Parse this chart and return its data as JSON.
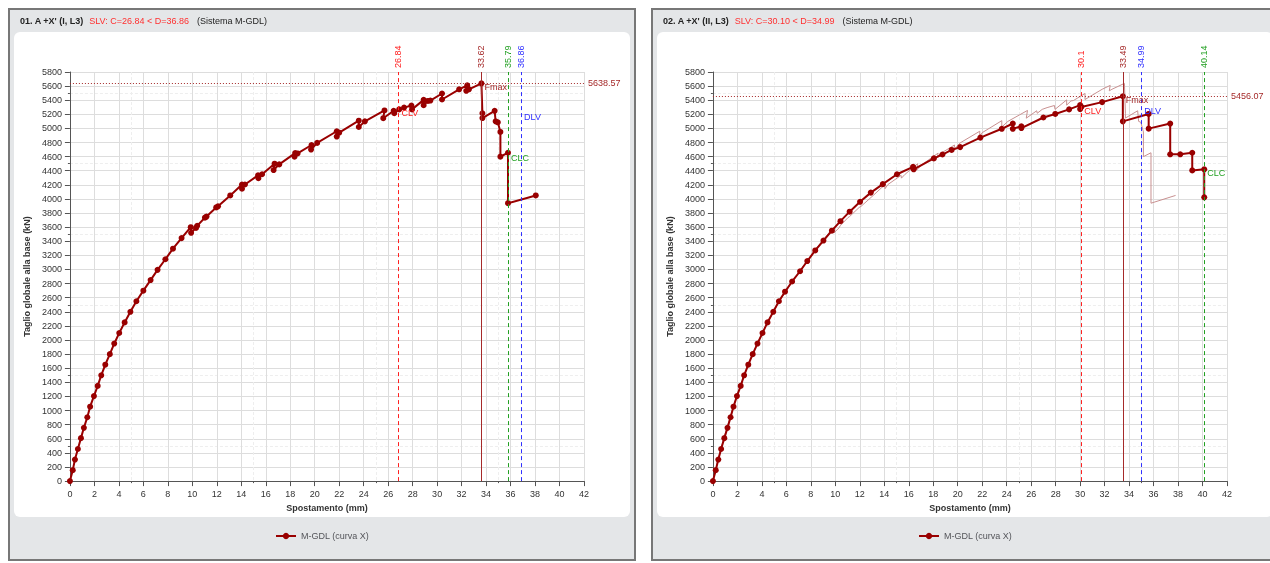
{
  "chart_data": [
    {
      "type": "line",
      "title": "01. A +X' (I, L3)",
      "subtitle": "SLV: C=26.84 < D=36.86",
      "xlabel": "Spostamento (mm)",
      "ylabel": "Taglio globale alla base (kN)",
      "xlim": [
        0,
        42
      ],
      "xticks": [
        0,
        2,
        4,
        6,
        8,
        10,
        12,
        14,
        16,
        18,
        20,
        22,
        24,
        26,
        28,
        30,
        32,
        34,
        36,
        38,
        40,
        42
      ],
      "ylim": [
        0,
        5800
      ],
      "yticks": [
        0,
        200,
        400,
        600,
        800,
        1000,
        1200,
        1400,
        1600,
        1800,
        2000,
        2200,
        2400,
        2600,
        2800,
        3000,
        3200,
        3400,
        3600,
        3800,
        4000,
        4200,
        4400,
        4600,
        4800,
        5000,
        5200,
        5400,
        5600,
        5800
      ],
      "grid": true,
      "legend": "bottom",
      "marker": "circle",
      "line_style": "solid",
      "series": [
        {
          "name": "M-GDL (curva X)",
          "color": "#990000",
          "x": [
            0,
            0.23,
            0.41,
            0.65,
            0.9,
            1.14,
            1.42,
            1.65,
            1.96,
            2.27,
            2.56,
            2.89,
            3.26,
            3.62,
            4.03,
            4.47,
            4.94,
            5.43,
            6.0,
            6.59,
            7.16,
            7.8,
            8.42,
            9.12,
            9.87,
            9.9,
            10.3,
            10.4,
            11.03,
            11.16,
            11.95,
            12.1,
            13.1,
            14.06,
            14.06,
            14.3,
            15.37,
            15.4,
            15.7,
            16.72,
            16.64,
            17.1,
            18.4,
            18.35,
            18.6,
            19.74,
            19.7,
            20.2,
            21.8,
            21.8,
            22.0,
            23.6,
            23.6,
            24.1,
            25.7,
            25.6,
            26.45,
            26.5,
            26.9,
            27.3,
            27.9,
            27.95,
            28.9,
            28.9,
            29.25,
            29.45,
            30.4,
            30.4,
            31.8,
            32.46,
            32.38,
            32.6,
            33.62,
            33.7,
            33.7,
            34.7,
            34.78,
            34.96,
            35.17,
            35.17,
            35.79,
            35.79,
            38.06
          ],
          "values": [
            0,
            155,
            305,
            455,
            609,
            755,
            905,
            1055,
            1205,
            1350,
            1500,
            1650,
            1800,
            1950,
            2100,
            2250,
            2400,
            2550,
            2700,
            2850,
            2995,
            3145,
            3295,
            3445,
            3600,
            3520,
            3590,
            3620,
            3735,
            3750,
            3880,
            3895,
            4050,
            4205,
            4145,
            4205,
            4335,
            4295,
            4350,
            4500,
            4410,
            4490,
            4650,
            4600,
            4645,
            4765,
            4700,
            4795,
            4960,
            4885,
            4940,
            5110,
            5020,
            5100,
            5255,
            5145,
            5250,
            5215,
            5270,
            5295,
            5325,
            5270,
            5405,
            5330,
            5390,
            5395,
            5495,
            5410,
            5555,
            5610,
            5533,
            5555,
            5638.57,
            5215,
            5147,
            5250,
            5100,
            5087,
            4950,
            4600,
            4655,
            3940,
            4050
          ]
        }
      ],
      "ref_lines": [
        {
          "axis": "x",
          "value": 26.84,
          "label": "26.84",
          "color": "#ff2020",
          "line_style": "dashed"
        },
        {
          "axis": "x",
          "value": 33.62,
          "label": "33.62",
          "color": "#a52a2a",
          "line_style": "solid"
        },
        {
          "axis": "x",
          "value": 35.79,
          "label": "35.79",
          "color": "#22a022",
          "line_style": "dashed"
        },
        {
          "axis": "x",
          "value": 36.86,
          "label": "36.86",
          "color": "#3030ff",
          "line_style": "dashed"
        },
        {
          "axis": "y",
          "value": 5638.57,
          "label": "5638.57",
          "color": "#a52a2a",
          "line_style": "dotted"
        }
      ],
      "annotations": [
        "(Sistema M-GDL)",
        {
          "text": "Fmax",
          "x": 33.62,
          "y": 5638.57
        },
        {
          "text": "CLV",
          "x": 26.84,
          "y": 5270
        },
        {
          "text": "CLC",
          "x": 35.79,
          "y": 4640
        },
        {
          "text": "DLV",
          "x": 36.86,
          "y": 5220
        }
      ]
    },
    {
      "type": "line",
      "title": "02. A +X' (II, L3)",
      "subtitle": "SLV: C=30.10 < D=34.99",
      "xlabel": "Spostamento (mm)",
      "ylabel": "Taglio globale alla base (kN)",
      "xlim": [
        0,
        42
      ],
      "xticks": [
        0,
        2,
        4,
        6,
        8,
        10,
        12,
        14,
        16,
        18,
        20,
        22,
        24,
        26,
        28,
        30,
        32,
        34,
        36,
        38,
        40,
        42
      ],
      "ylim": [
        0,
        5800
      ],
      "yticks": [
        0,
        200,
        400,
        600,
        800,
        1000,
        1200,
        1400,
        1600,
        1800,
        2000,
        2200,
        2400,
        2600,
        2800,
        3000,
        3200,
        3400,
        3600,
        3800,
        4000,
        4200,
        4400,
        4600,
        4800,
        5000,
        5200,
        5400,
        5600,
        5800
      ],
      "grid": true,
      "legend": "bottom",
      "marker": "circle",
      "line_style": "solid",
      "series": [
        {
          "color": "#c89090",
          "marker": "none",
          "x": [
            0,
            0.23,
            0.41,
            0.65,
            0.9,
            1.14,
            1.42,
            1.65,
            1.96,
            2.27,
            2.56,
            2.89,
            3.26,
            3.62,
            4.03,
            4.47,
            4.94,
            5.43,
            6.0,
            6.59,
            7.16,
            7.8,
            8.42,
            9.12,
            9.87,
            9.9,
            10.3,
            10.4,
            11.03,
            11.16,
            11.95,
            12.1,
            13.1,
            14.06,
            14.06,
            14.3,
            15.37,
            15.4,
            15.7,
            16.72,
            16.64,
            17.1,
            18.4,
            18.35,
            18.6,
            19.74,
            19.7,
            20.2,
            21.8,
            21.8,
            22.0,
            23.6,
            23.6,
            24.1,
            25.7,
            25.6,
            26.45,
            26.5,
            26.9,
            27.3,
            27.9,
            27.95,
            28.9,
            28.9,
            29.25,
            29.45,
            30.4,
            30.4,
            31.8,
            32.46,
            32.38,
            32.6,
            33.62,
            33.7,
            33.7,
            34.7,
            34.78,
            34.96,
            35.17,
            35.17,
            35.79,
            35.79,
            37.8
          ],
          "values": [
            0,
            155,
            305,
            455,
            609,
            755,
            905,
            1055,
            1205,
            1350,
            1500,
            1650,
            1800,
            1950,
            2100,
            2250,
            2400,
            2550,
            2700,
            2850,
            2995,
            3145,
            3295,
            3445,
            3600,
            3520,
            3590,
            3620,
            3735,
            3750,
            3880,
            3895,
            4050,
            4205,
            4145,
            4205,
            4335,
            4295,
            4350,
            4500,
            4410,
            4490,
            4650,
            4600,
            4645,
            4765,
            4700,
            4795,
            4960,
            4885,
            4940,
            5110,
            5020,
            5100,
            5255,
            5145,
            5250,
            5215,
            5270,
            5295,
            5325,
            5270,
            5405,
            5330,
            5390,
            5395,
            5495,
            5410,
            5555,
            5610,
            5533,
            5555,
            5638.57,
            5215,
            5147,
            5250,
            5100,
            5087,
            4950,
            4600,
            4655,
            3940,
            4050
          ]
        },
        {
          "name": "M-GDL (curva X)",
          "color": "#990000",
          "x": [
            0,
            0.23,
            0.44,
            0.67,
            0.93,
            1.19,
            1.44,
            1.68,
            1.96,
            2.27,
            2.55,
            2.89,
            3.25,
            3.64,
            4.05,
            4.46,
            4.93,
            5.39,
            5.89,
            6.47,
            7.12,
            7.71,
            8.36,
            9.03,
            9.72,
            10.42,
            11.17,
            12.02,
            12.9,
            13.88,
            15.04,
            16.35,
            16.4,
            18.05,
            18.75,
            19.5,
            20.2,
            21.85,
            23.6,
            24.5,
            24.5,
            25.2,
            25.2,
            27.0,
            27.97,
            29.1,
            30.0,
            30.0,
            30.1,
            31.8,
            33.49,
            33.49,
            35.6,
            35.6,
            37.36,
            37.36,
            38.18,
            39.16,
            39.16,
            40.14,
            40.14
          ],
          "values": [
            0,
            155,
            305,
            455,
            609,
            755,
            905,
            1055,
            1205,
            1350,
            1500,
            1650,
            1800,
            1950,
            2100,
            2250,
            2400,
            2550,
            2685,
            2830,
            2975,
            3120,
            3270,
            3410,
            3550,
            3685,
            3820,
            3960,
            4090,
            4210,
            4350,
            4455,
            4420,
            4575,
            4630,
            4695,
            4735,
            4870,
            4995,
            5070,
            4995,
            5030,
            5005,
            5155,
            5205,
            5270,
            5330,
            5275,
            5305,
            5373,
            5456.07,
            5100,
            5205,
            4997,
            5069,
            4633,
            4633,
            4655,
            4405,
            4420,
            4023
          ]
        }
      ],
      "ref_lines": [
        {
          "axis": "x",
          "value": 30.1,
          "label": "30.1",
          "color": "#ff2020",
          "line_style": "dashed"
        },
        {
          "axis": "x",
          "value": 33.49,
          "label": "33.49",
          "color": "#a52a2a",
          "line_style": "solid"
        },
        {
          "axis": "x",
          "value": 34.99,
          "label": "34.99",
          "color": "#3030ff",
          "line_style": "dashed"
        },
        {
          "axis": "x",
          "value": 40.14,
          "label": "40.14",
          "color": "#22a022",
          "line_style": "dashed"
        },
        {
          "axis": "y",
          "value": 5456.07,
          "label": "5456.07",
          "color": "#a52a2a",
          "line_style": "dotted"
        }
      ],
      "annotations": [
        "(Sistema M-GDL)",
        {
          "text": "Fmax",
          "x": 33.49,
          "y": 5456.07
        },
        {
          "text": "CLV",
          "x": 30.1,
          "y": 5300
        },
        {
          "text": "DLV",
          "x": 34.99,
          "y": 5310
        },
        {
          "text": "CLC",
          "x": 40.14,
          "y": 4420
        }
      ]
    }
  ]
}
